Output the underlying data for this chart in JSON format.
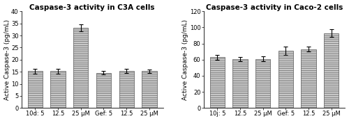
{
  "left": {
    "title": "Caspase-3 activity in C3A cells",
    "ylabel": "Active Caspase-3 (pg/mL)",
    "xlabels": [
      "10d: 5",
      "12.5",
      "25 μM",
      "Gef: 5",
      "12.5",
      "25 μM"
    ],
    "values": [
      15.2,
      15.2,
      33.2,
      14.5,
      15.3,
      15.2
    ],
    "errors": [
      0.9,
      0.9,
      1.5,
      0.7,
      0.9,
      0.7
    ],
    "ylim": [
      0,
      40
    ],
    "yticks": [
      0,
      5,
      10,
      15,
      20,
      25,
      30,
      35,
      40
    ]
  },
  "right": {
    "title": "Caspase-3 activity in Caco-2 cells",
    "ylabel": "Active Caspase-3 (pg/mL)",
    "xlabels": [
      "10j: 5",
      "12.5",
      "25 μM",
      "Gef: 5",
      "12.5",
      "25 μM"
    ],
    "values": [
      63.0,
      61.0,
      61.0,
      71.0,
      73.0,
      93.0
    ],
    "errors": [
      3.0,
      2.5,
      3.0,
      5.0,
      3.0,
      4.5
    ],
    "ylim": [
      0,
      120
    ],
    "yticks": [
      0,
      20,
      40,
      60,
      80,
      100,
      120
    ]
  },
  "bar_facecolor": "#c8c8c8",
  "bar_edgecolor": "#555555",
  "hatch": "------",
  "figsize": [
    5.0,
    1.74
  ],
  "dpi": 100,
  "title_fontsize": 7.5,
  "label_fontsize": 6.5,
  "tick_fontsize": 6.0,
  "bar_width": 0.65,
  "capsize": 2
}
